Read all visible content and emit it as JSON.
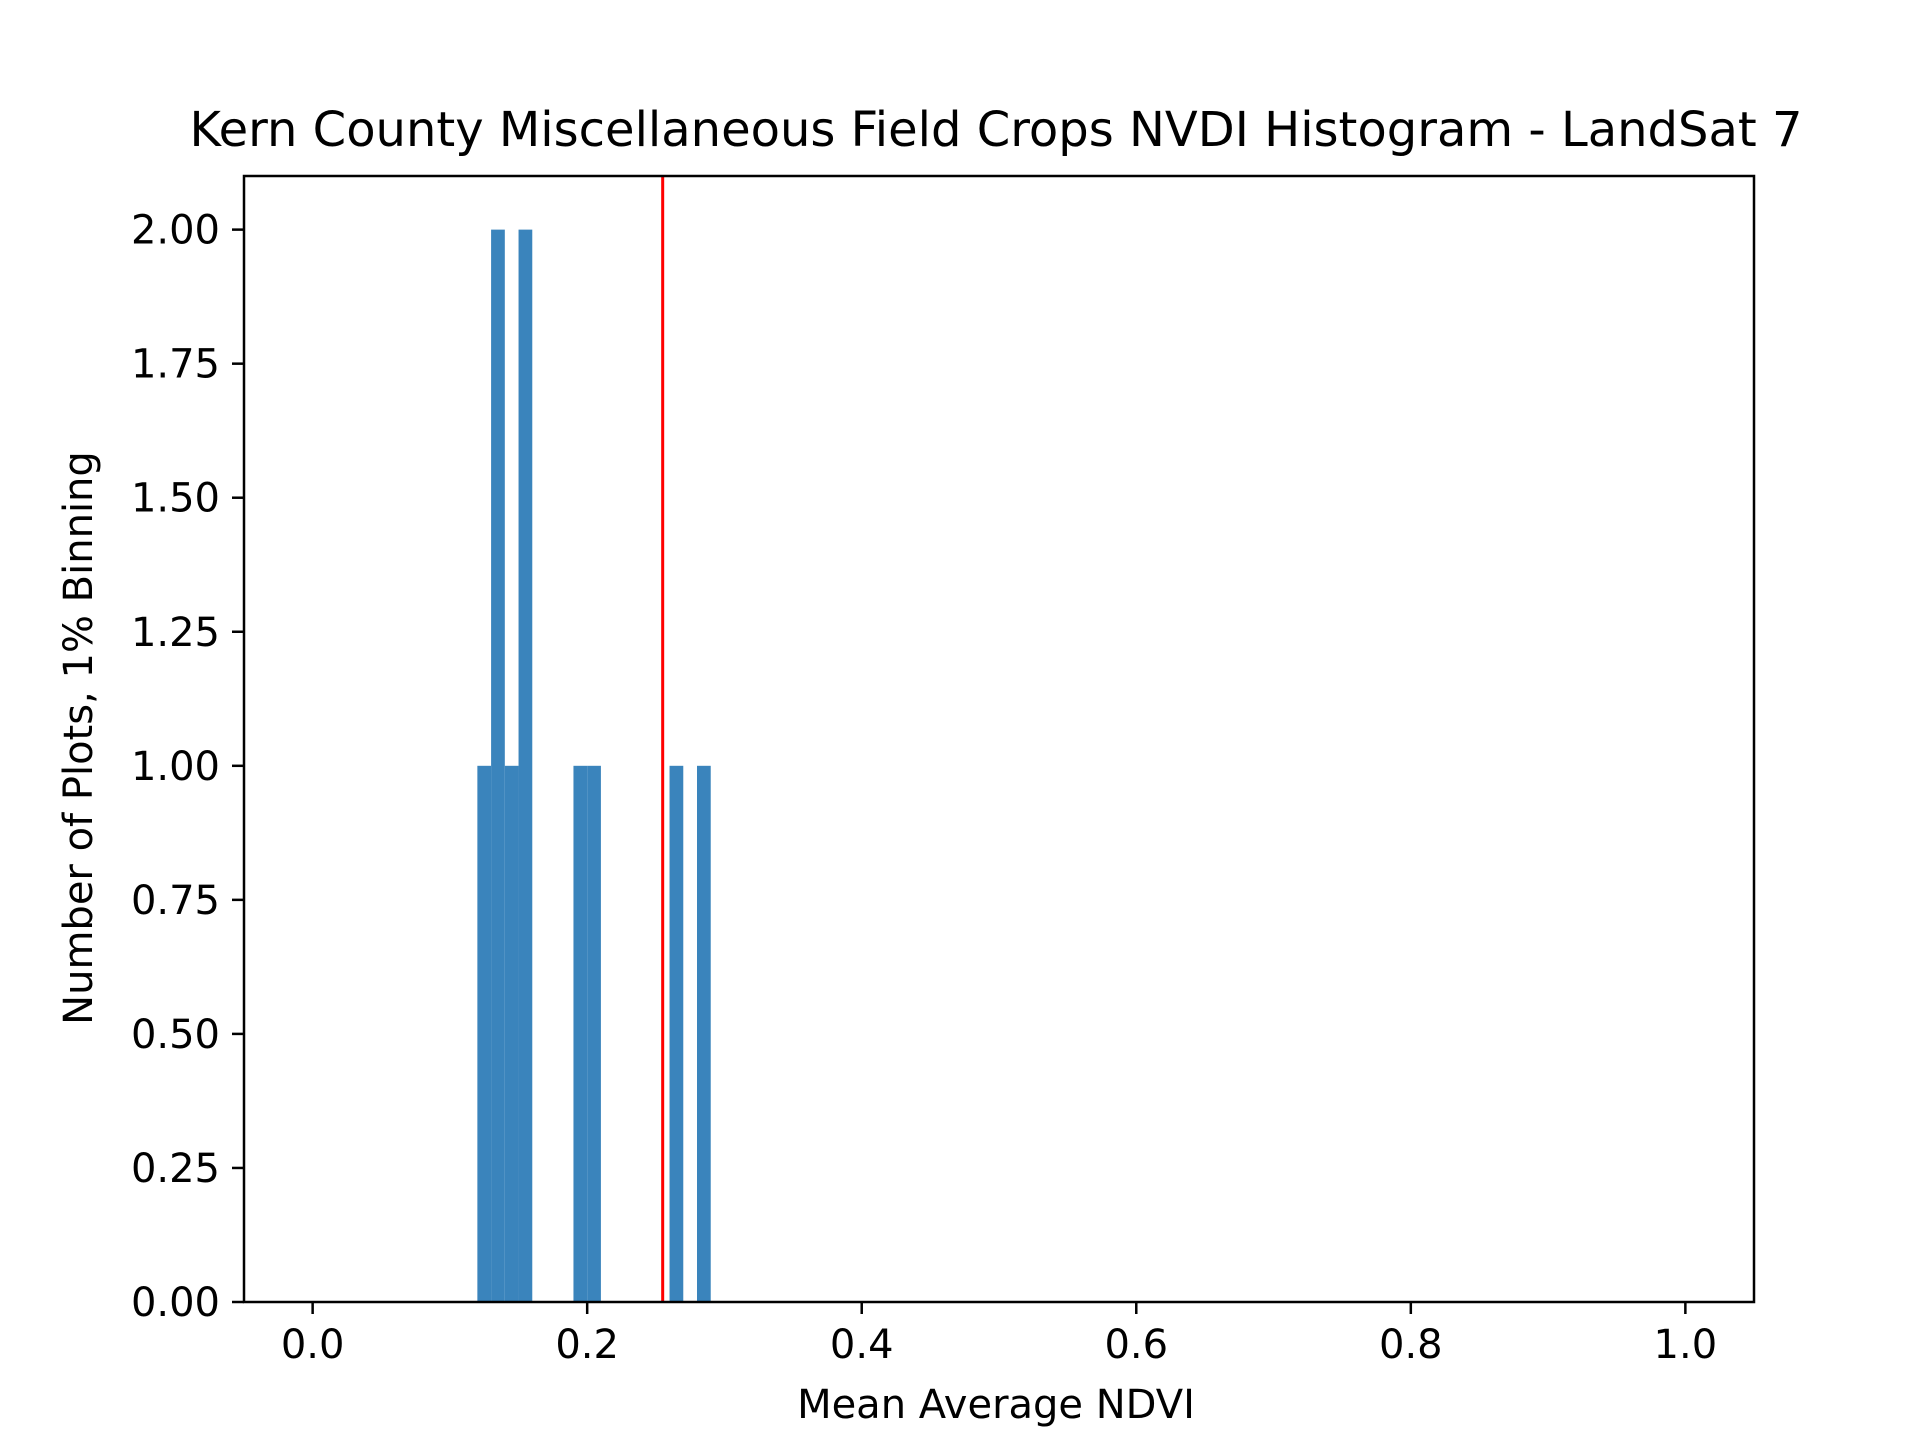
{
  "chart_data": {
    "type": "bar",
    "title": "Kern County Miscellaneous Field Crops NVDI Histogram - LandSat 7",
    "xlabel": "Mean Average NDVI",
    "ylabel": "Number of Plots, 1% Binning",
    "xlim": [
      -0.05,
      1.05
    ],
    "ylim": [
      0,
      2.1
    ],
    "bin_width": 0.01,
    "x_ticks": [
      0.0,
      0.2,
      0.4,
      0.6,
      0.8,
      1.0
    ],
    "x_tick_labels": [
      "0.0",
      "0.2",
      "0.4",
      "0.6",
      "0.8",
      "1.0"
    ],
    "y_ticks": [
      0.0,
      0.25,
      0.5,
      0.75,
      1.0,
      1.25,
      1.5,
      1.75,
      2.0
    ],
    "y_tick_labels": [
      "0.00",
      "0.25",
      "0.50",
      "0.75",
      "1.00",
      "1.25",
      "1.50",
      "1.75",
      "2.00"
    ],
    "bins": [
      {
        "start": 0.12,
        "count": 1
      },
      {
        "start": 0.13,
        "count": 2
      },
      {
        "start": 0.14,
        "count": 1
      },
      {
        "start": 0.15,
        "count": 2
      },
      {
        "start": 0.19,
        "count": 1
      },
      {
        "start": 0.2,
        "count": 1
      },
      {
        "start": 0.26,
        "count": 1
      },
      {
        "start": 0.28,
        "count": 1
      }
    ],
    "mean_line": {
      "x": 0.255,
      "color": "#ff0000"
    },
    "bar_color": "#3A84BC",
    "grid": false,
    "legend": "none"
  }
}
